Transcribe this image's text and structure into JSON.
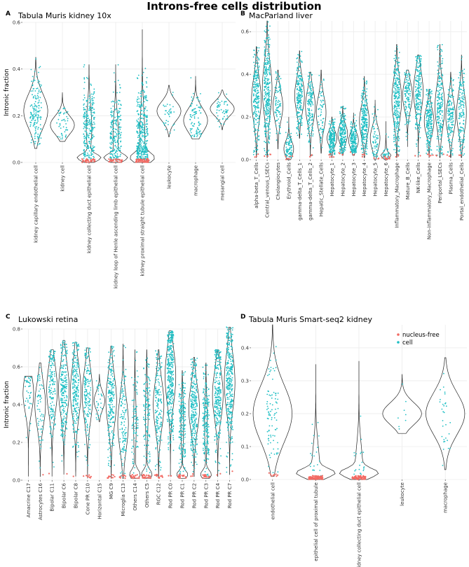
{
  "title": "Introns-free cells distribution",
  "colors": {
    "cell": "#1fbfc4",
    "nucleus_free": "#f26a63",
    "axis": "#333333",
    "grid": "#ebebeb"
  },
  "legend": {
    "entries": [
      "nucleus-free",
      "cell"
    ]
  },
  "chart_data": [
    {
      "id": "A",
      "label": "A",
      "type": "violin",
      "title": "Tabula Muris kidney 10x",
      "ylabel": "Intronic fraction",
      "ylim": [
        0,
        0.6
      ],
      "yticks": [
        0.0,
        0.2,
        0.4,
        0.6
      ],
      "ytick_labels": [
        "0.0",
        "0.2",
        "0.4",
        "0.6"
      ],
      "categories": [
        "kidney capillary endothelial cell",
        "kidney cell",
        "kidney collecting duct epithelial cell",
        "kidney loop of Henle ascending limb epithelial cell",
        "kidney proximal straight tubule epithelial cell",
        "leukocyte",
        "macrophage",
        "mesangial cell"
      ],
      "series": [
        {
          "name": "kidney capillary endothelial cell",
          "min": 0.06,
          "max": 0.45,
          "median": 0.22,
          "nf": 0,
          "n": 160,
          "lowmode": false
        },
        {
          "name": "kidney cell",
          "min": 0.09,
          "max": 0.3,
          "median": 0.16,
          "nf": 0,
          "n": 45,
          "lowmode": false
        },
        {
          "name": "kidney collecting duct epithelial cell",
          "min": 0.0,
          "max": 0.42,
          "median": 0.15,
          "nf": 35,
          "n": 260,
          "lowmode": true
        },
        {
          "name": "kidney loop of Henle ascending limb epithelial cell",
          "min": 0.0,
          "max": 0.42,
          "median": 0.12,
          "nf": 30,
          "n": 220,
          "lowmode": true
        },
        {
          "name": "kidney proximal straight tubule epithelial cell",
          "min": 0.0,
          "max": 0.57,
          "median": 0.1,
          "nf": 60,
          "n": 380,
          "lowmode": true
        },
        {
          "name": "leukocyte",
          "min": 0.11,
          "max": 0.33,
          "median": 0.22,
          "nf": 0,
          "n": 35,
          "lowmode": false
        },
        {
          "name": "macrophage",
          "min": 0.1,
          "max": 0.37,
          "median": 0.18,
          "nf": 0,
          "n": 90,
          "lowmode": false
        },
        {
          "name": "mesangial cell",
          "min": 0.14,
          "max": 0.31,
          "median": 0.23,
          "nf": 0,
          "n": 50,
          "lowmode": false
        }
      ]
    },
    {
      "id": "B",
      "label": "B",
      "type": "violin",
      "title": "MacParland liver",
      "ylabel": "",
      "ylim": [
        0,
        0.65
      ],
      "yticks": [
        0.0,
        0.2,
        0.4,
        0.6
      ],
      "ytick_labels": [
        "0.0",
        "0.2",
        "0.4",
        "0.6"
      ],
      "categories": [
        "alpha-beta_T_Cells",
        "Central_venous_LSECs",
        "Cholangiocytes",
        "Erythroid_Cells",
        "gamma-delta_T_Cells_1",
        "gamma-delta_T_Cells_2",
        "Hepatic_Stellate_Cells",
        "Hepatocyte_1",
        "Hepatocyte_2",
        "Hepatocyte_3",
        "Hepatocyte_4",
        "Hepatocyte_5",
        "Hepatocyte_6",
        "Inflammatory_Macrophage",
        "Mature_B_Cells",
        "NK-like_Cells",
        "Non-inflammatory_Macrophage",
        "Periportal_LSECs",
        "Plasma_Cells",
        "Portal_endothelial_Cells"
      ],
      "series": [
        {
          "name": "alpha-beta_T_Cells",
          "min": 0.01,
          "max": 0.53,
          "median": 0.28,
          "nf": 3,
          "n": 220,
          "lowmode": false
        },
        {
          "name": "Central_venous_LSECs",
          "min": 0.01,
          "max": 0.65,
          "median": 0.33,
          "nf": 4,
          "n": 300,
          "lowmode": false
        },
        {
          "name": "Cholangiocytes",
          "min": 0.05,
          "max": 0.42,
          "median": 0.25,
          "nf": 0,
          "n": 90,
          "lowmode": false
        },
        {
          "name": "Erythroid_Cells",
          "min": 0.0,
          "max": 0.2,
          "median": 0.05,
          "nf": 6,
          "n": 80,
          "lowmode": false
        },
        {
          "name": "gamma-delta_T_Cells_1",
          "min": 0.1,
          "max": 0.51,
          "median": 0.3,
          "nf": 0,
          "n": 200,
          "lowmode": false
        },
        {
          "name": "gamma-delta_T_Cells_2",
          "min": 0.01,
          "max": 0.41,
          "median": 0.25,
          "nf": 3,
          "n": 150,
          "lowmode": false
        },
        {
          "name": "Hepatic_Stellate_Cells",
          "min": 0.03,
          "max": 0.42,
          "median": 0.22,
          "nf": 0,
          "n": 60,
          "lowmode": false
        },
        {
          "name": "Hepatocyte_1",
          "min": 0.01,
          "max": 0.2,
          "median": 0.1,
          "nf": 5,
          "n": 200,
          "lowmode": false
        },
        {
          "name": "Hepatocyte_2",
          "min": 0.02,
          "max": 0.25,
          "median": 0.12,
          "nf": 3,
          "n": 200,
          "lowmode": false
        },
        {
          "name": "Hepatocyte_3",
          "min": 0.02,
          "max": 0.22,
          "median": 0.09,
          "nf": 2,
          "n": 180,
          "lowmode": false
        },
        {
          "name": "Hepatocyte_4",
          "min": 0.01,
          "max": 0.39,
          "median": 0.18,
          "nf": 4,
          "n": 220,
          "lowmode": false
        },
        {
          "name": "Hepatocyte_5",
          "min": 0.0,
          "max": 0.28,
          "median": 0.1,
          "nf": 3,
          "n": 60,
          "lowmode": false
        },
        {
          "name": "Hepatocyte_6",
          "min": 0.0,
          "max": 0.18,
          "median": 0.02,
          "nf": 10,
          "n": 30,
          "lowmode": true
        },
        {
          "name": "Inflammatory_Macrophage",
          "min": 0.01,
          "max": 0.54,
          "median": 0.28,
          "nf": 3,
          "n": 260,
          "lowmode": false
        },
        {
          "name": "Mature_B_Cells",
          "min": 0.06,
          "max": 0.42,
          "median": 0.3,
          "nf": 0,
          "n": 120,
          "lowmode": false
        },
        {
          "name": "NK-like_Cells",
          "min": 0.01,
          "max": 0.49,
          "median": 0.32,
          "nf": 2,
          "n": 220,
          "lowmode": false
        },
        {
          "name": "Non-inflammatory_Macrophage",
          "min": 0.01,
          "max": 0.33,
          "median": 0.18,
          "nf": 5,
          "n": 200,
          "lowmode": false
        },
        {
          "name": "Periportal_LSECs",
          "min": 0.01,
          "max": 0.54,
          "median": 0.25,
          "nf": 3,
          "n": 200,
          "lowmode": false
        },
        {
          "name": "Plasma_Cells",
          "min": 0.01,
          "max": 0.41,
          "median": 0.2,
          "nf": 2,
          "n": 150,
          "lowmode": false
        },
        {
          "name": "Portal_endothelial_Cells",
          "min": 0.01,
          "max": 0.49,
          "median": 0.22,
          "nf": 2,
          "n": 150,
          "lowmode": false
        }
      ]
    },
    {
      "id": "C",
      "label": "C",
      "type": "violin",
      "title": "Lukowski retina",
      "ylabel": "Intronic fraction",
      "ylim": [
        0,
        0.8
      ],
      "yticks": [
        0.0,
        0.2,
        0.4,
        0.6,
        0.8
      ],
      "ytick_labels": [
        "0.0",
        "0.2",
        "0.4",
        "0.6",
        "0.8"
      ],
      "categories": [
        "Amacrine C17",
        "Astrocytes C16",
        "Bipolar C11",
        "Bipolar C6",
        "Bipolar C8",
        "Cone PR C10",
        "Horizontal C15",
        "MG C9",
        "Microglia C13",
        "Others C14",
        "Others C5",
        "RGC C12",
        "Rod PR C0",
        "Rod PR C1",
        "Rod PR C2",
        "Rod PR C3",
        "Rod PR C4",
        "Rod PR C7"
      ],
      "series": [
        {
          "name": "Amacrine C17",
          "min": 0.02,
          "max": 0.55,
          "median": 0.46,
          "nf": 0,
          "n": 40,
          "lowmode": false
        },
        {
          "name": "Astrocytes C16",
          "min": 0.02,
          "max": 0.62,
          "median": 0.4,
          "nf": 1,
          "n": 60,
          "lowmode": false
        },
        {
          "name": "Bipolar C11",
          "min": 0.02,
          "max": 0.69,
          "median": 0.48,
          "nf": 1,
          "n": 150,
          "lowmode": false
        },
        {
          "name": "Bipolar C6",
          "min": 0.03,
          "max": 0.74,
          "median": 0.48,
          "nf": 1,
          "n": 220,
          "lowmode": false
        },
        {
          "name": "Bipolar C8",
          "min": 0.02,
          "max": 0.73,
          "median": 0.47,
          "nf": 1,
          "n": 220,
          "lowmode": false
        },
        {
          "name": "Cone PR C10",
          "min": 0.01,
          "max": 0.7,
          "median": 0.45,
          "nf": 8,
          "n": 160,
          "lowmode": false
        },
        {
          "name": "Horizontal C15",
          "min": 0.31,
          "max": 0.56,
          "median": 0.42,
          "nf": 0,
          "n": 30,
          "lowmode": false
        },
        {
          "name": "MG C9",
          "min": 0.01,
          "max": 0.71,
          "median": 0.42,
          "nf": 12,
          "n": 200,
          "lowmode": false
        },
        {
          "name": "Microglia C13",
          "min": 0.01,
          "max": 0.72,
          "median": 0.3,
          "nf": 10,
          "n": 120,
          "lowmode": false
        },
        {
          "name": "Others C14",
          "min": 0.01,
          "max": 0.69,
          "median": 0.3,
          "nf": 18,
          "n": 80,
          "lowmode": true
        },
        {
          "name": "Others C5",
          "min": 0.01,
          "max": 0.69,
          "median": 0.35,
          "nf": 22,
          "n": 140,
          "lowmode": true
        },
        {
          "name": "RGC C12",
          "min": 0.01,
          "max": 0.69,
          "median": 0.4,
          "nf": 15,
          "n": 160,
          "lowmode": false
        },
        {
          "name": "Rod PR C0",
          "min": 0.02,
          "max": 0.79,
          "median": 0.55,
          "nf": 2,
          "n": 360,
          "lowmode": false
        },
        {
          "name": "Rod PR C1",
          "min": 0.01,
          "max": 0.58,
          "median": 0.3,
          "nf": 18,
          "n": 200,
          "lowmode": true
        },
        {
          "name": "Rod PR C2",
          "min": 0.02,
          "max": 0.65,
          "median": 0.38,
          "nf": 3,
          "n": 260,
          "lowmode": false
        },
        {
          "name": "Rod PR C3",
          "min": 0.01,
          "max": 0.62,
          "median": 0.3,
          "nf": 18,
          "n": 200,
          "lowmode": true
        },
        {
          "name": "Rod PR C4",
          "min": 0.02,
          "max": 0.69,
          "median": 0.45,
          "nf": 2,
          "n": 260,
          "lowmode": false
        },
        {
          "name": "Rod PR C7",
          "min": 0.03,
          "max": 0.81,
          "median": 0.52,
          "nf": 1,
          "n": 320,
          "lowmode": false
        }
      ]
    },
    {
      "id": "D",
      "label": "D",
      "type": "violin",
      "title": "Tabula Muris Smart-seq2 kidney",
      "ylabel": "",
      "ylim": [
        0,
        0.47
      ],
      "yticks": [
        0.0,
        0.1,
        0.2,
        0.3,
        0.4
      ],
      "ytick_labels": [
        "0.0",
        "0.1",
        "0.2",
        "0.3",
        "0.4"
      ],
      "categories": [
        "endothelial cell",
        "epithelial cell of proximal tubule",
        "kidney collecting duct epithelial cell",
        "leukocyte",
        "macrophage"
      ],
      "series": [
        {
          "name": "endothelial cell",
          "min": 0.01,
          "max": 0.47,
          "median": 0.2,
          "nf": 8,
          "n": 90,
          "lowmode": false
        },
        {
          "name": "epithelial cell of proximal tubule",
          "min": 0.0,
          "max": 0.35,
          "median": 0.03,
          "nf": 80,
          "n": 20,
          "lowmode": true
        },
        {
          "name": "kidney collecting duct epithelial cell",
          "min": 0.0,
          "max": 0.36,
          "median": 0.025,
          "nf": 70,
          "n": 20,
          "lowmode": true
        },
        {
          "name": "leukocyte",
          "min": 0.14,
          "max": 0.32,
          "median": 0.2,
          "nf": 0,
          "n": 8,
          "lowmode": false
        },
        {
          "name": "macrophage",
          "min": 0.03,
          "max": 0.37,
          "median": 0.2,
          "nf": 0,
          "n": 30,
          "lowmode": false
        }
      ]
    }
  ]
}
